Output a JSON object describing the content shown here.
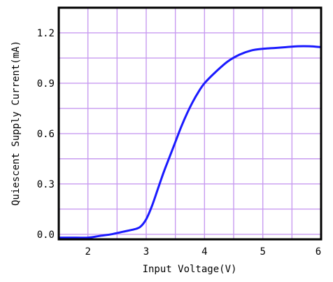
{
  "chart_data": {
    "type": "line",
    "title": "",
    "xlabel": "Input Voltage(V)",
    "ylabel": "Quiescent Supply Current(mA)",
    "xlim": [
      1.5,
      6.0
    ],
    "ylim": [
      -0.03,
      1.35
    ],
    "x_ticks": [
      2,
      3,
      4,
      5,
      6
    ],
    "x_tick_labels": [
      "2",
      "3",
      "4",
      "5",
      "6"
    ],
    "y_ticks": [
      0.0,
      0.3,
      0.6,
      0.9,
      1.2
    ],
    "y_tick_labels": [
      "0.0",
      "0.3",
      "0.6",
      "0.9",
      "1.2"
    ],
    "x_minor_step": 0.5,
    "y_minor_step": 0.15,
    "grid": true,
    "legend": "none",
    "colors": {
      "line": "#1a1aff",
      "grid": "#c89bf0",
      "frame": "#000000"
    },
    "series": [
      {
        "values_x": [
          1.5,
          1.8,
          2.0,
          2.2,
          2.4,
          2.6,
          2.8,
          2.9,
          3.0,
          3.1,
          3.2,
          3.3,
          3.4,
          3.5,
          3.6,
          3.7,
          3.8,
          3.9,
          4.0,
          4.2,
          4.4,
          4.6,
          4.8,
          5.0,
          5.2,
          5.4,
          5.6,
          5.8,
          6.0
        ],
        "values_y": [
          -0.02,
          -0.02,
          -0.02,
          -0.01,
          0.0,
          0.015,
          0.03,
          0.045,
          0.09,
          0.17,
          0.27,
          0.37,
          0.46,
          0.55,
          0.64,
          0.72,
          0.79,
          0.85,
          0.9,
          0.97,
          1.03,
          1.07,
          1.095,
          1.105,
          1.11,
          1.115,
          1.12,
          1.12,
          1.115
        ]
      }
    ]
  }
}
